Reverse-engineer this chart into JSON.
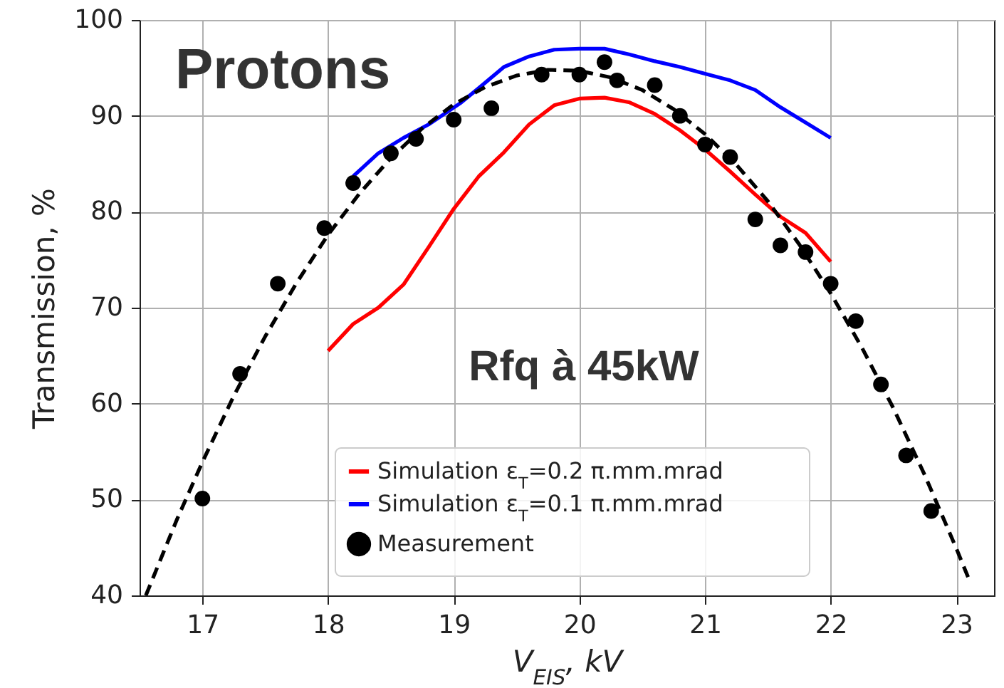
{
  "chart_data": {
    "type": "line",
    "xlabel": "V$_{EIS}$, kV",
    "ylabel": "Transmission, %",
    "annotations": [
      "Protons",
      "Rfq à 45kW"
    ],
    "xlim": [
      16.5,
      23.3
    ],
    "xticks": [
      17,
      18,
      19,
      20,
      21,
      22,
      23
    ],
    "ylim": [
      40,
      100
    ],
    "yticks": [
      40,
      50,
      60,
      70,
      80,
      90,
      100
    ],
    "grid": true,
    "legend": "bottom",
    "series": [
      {
        "name": "Simulation ε$_{T}$=0.2 π.mm.mrad",
        "type": "line",
        "color": "#ff0000",
        "x": [
          18.0,
          18.2,
          18.4,
          18.6,
          18.8,
          19.0,
          19.2,
          19.4,
          19.6,
          19.8,
          20.0,
          20.2,
          20.4,
          20.6,
          20.8,
          21.0,
          21.2,
          21.4,
          21.6,
          21.8,
          22.0
        ],
        "values": [
          65.5,
          68.3,
          70.0,
          72.4,
          76.3,
          80.3,
          83.7,
          86.2,
          89.1,
          91.1,
          91.8,
          91.9,
          91.4,
          90.2,
          88.5,
          86.5,
          84.2,
          81.8,
          79.5,
          77.8,
          74.8
        ]
      },
      {
        "name": "Simulation ε$_{T}$=0.1 π.mm.mrad",
        "type": "line",
        "color": "#0000ff",
        "x": [
          18.2,
          18.4,
          18.6,
          18.8,
          19.05,
          19.2,
          19.4,
          19.6,
          19.8,
          20.0,
          20.2,
          20.4,
          20.6,
          20.8,
          21.0,
          21.2,
          21.4,
          21.6,
          21.8,
          22.0
        ],
        "values": [
          83.7,
          86.1,
          87.7,
          89.1,
          91.3,
          92.9,
          95.1,
          96.2,
          96.9,
          97.0,
          97.0,
          96.4,
          95.7,
          95.1,
          94.4,
          93.7,
          92.7,
          90.9,
          89.3,
          87.7
        ]
      },
      {
        "name": "Measurement",
        "type": "scatter",
        "marker": "circle",
        "color": "#000000",
        "x": [
          17.0,
          17.3,
          17.6,
          17.97,
          18.2,
          18.5,
          18.7,
          19.0,
          19.3,
          19.7,
          20.0,
          20.2,
          20.3,
          20.6,
          20.8,
          21.0,
          21.2,
          21.4,
          21.6,
          21.8,
          22.0,
          22.2,
          22.4,
          22.6,
          22.8
        ],
        "values": [
          50.1,
          63.1,
          72.5,
          78.3,
          83.0,
          86.1,
          87.6,
          89.6,
          90.8,
          94.3,
          94.3,
          95.6,
          93.7,
          93.2,
          90.0,
          87.0,
          85.7,
          79.2,
          76.5,
          75.8,
          72.5,
          68.6,
          62.0,
          54.6,
          48.8
        ]
      },
      {
        "type": "line",
        "line_style": "dashed",
        "color": "#000000",
        "x": [
          16.55,
          16.8,
          17.0,
          17.25,
          17.5,
          17.75,
          18.0,
          18.25,
          18.5,
          18.75,
          19.0,
          19.25,
          19.5,
          19.75,
          20.0,
          20.25,
          20.5,
          20.75,
          21.0,
          21.25,
          21.5,
          21.75,
          22.0,
          22.25,
          22.5,
          22.75,
          23.0,
          23.1
        ],
        "values": [
          40.0,
          48.0,
          53.9,
          60.8,
          67.0,
          72.6,
          77.6,
          81.9,
          85.6,
          88.7,
          91.2,
          93.0,
          94.2,
          94.8,
          94.7,
          94.0,
          92.7,
          90.7,
          88.1,
          84.9,
          81.1,
          76.6,
          71.5,
          65.8,
          59.5,
          52.5,
          44.9,
          41.7
        ]
      }
    ]
  }
}
